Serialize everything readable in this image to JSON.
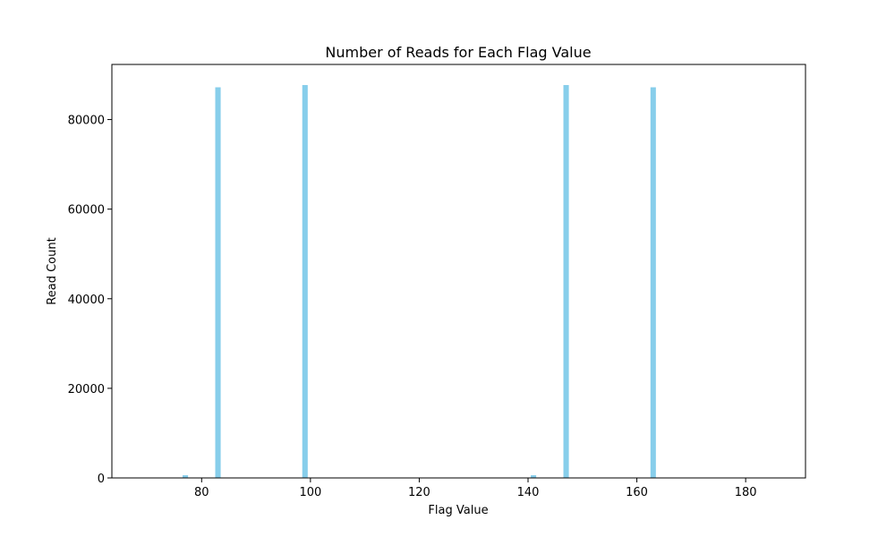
{
  "chart_data": {
    "type": "bar",
    "title": "Number of Reads for Each Flag Value",
    "xlabel": "Flag Value",
    "ylabel": "Read Count",
    "x": [
      77,
      83,
      99,
      141,
      147,
      163
    ],
    "values": [
      600,
      87200,
      87700,
      600,
      87700,
      87200
    ],
    "xlim": [
      63.5,
      191
    ],
    "ylim": [
      0,
      92300
    ],
    "xticks": [
      80,
      100,
      120,
      140,
      160,
      180
    ],
    "yticks": [
      0,
      20000,
      40000,
      60000,
      80000
    ],
    "bar_width": 1,
    "bar_color": "#87ceeb",
    "grid": false,
    "legend": "none"
  }
}
